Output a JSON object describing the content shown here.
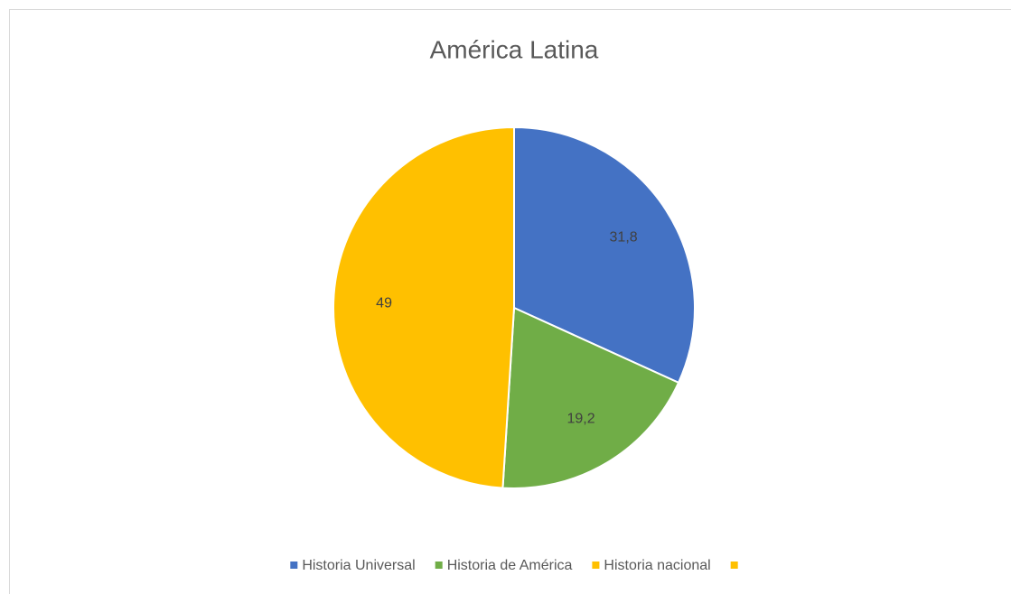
{
  "chart_data": {
    "type": "pie",
    "title": "América Latina",
    "categories": [
      "Historia Universal",
      "Historia de América",
      "Historia nacional",
      null
    ],
    "values": [
      31.8,
      19.2,
      49,
      null
    ],
    "value_labels": [
      "31,8",
      "19,2",
      "49",
      null
    ],
    "colors": [
      "#4472c4",
      "#70ad47",
      "#ffc000",
      "#ffc000"
    ],
    "legend": "bottom"
  }
}
